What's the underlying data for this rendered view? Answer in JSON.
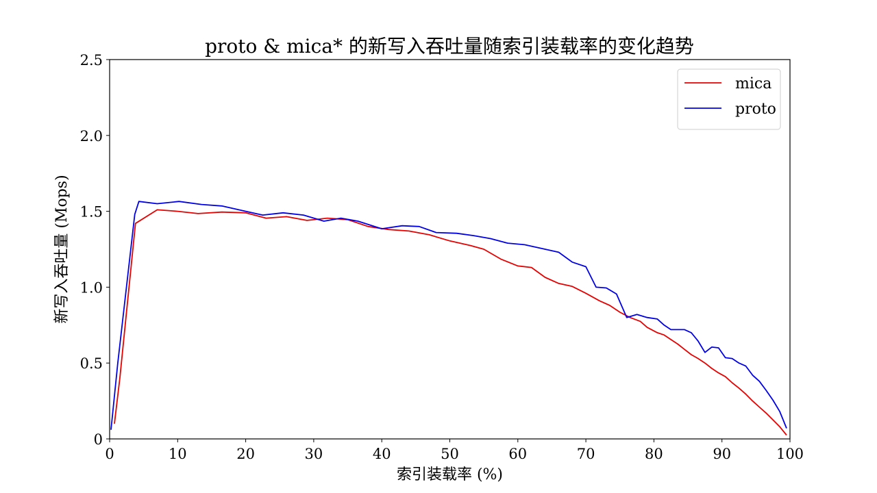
{
  "chart_data": {
    "type": "line",
    "title": "proto & mica* 的新写入吞吐量随索引装载率的变化趋势",
    "xlabel": "索引装载率 (%)",
    "ylabel": "新写入吞吐量 (Mops)",
    "xlim": [
      0,
      100
    ],
    "ylim": [
      0,
      2.5
    ],
    "xticks": [
      0,
      10,
      20,
      30,
      40,
      50,
      60,
      70,
      80,
      90,
      100
    ],
    "xtick_labels": [
      "0",
      "10",
      "20",
      "30",
      "40",
      "50",
      "60",
      "70",
      "80",
      "90",
      "100"
    ],
    "yticks": [
      0,
      0.5,
      1.0,
      1.5,
      2.0,
      2.5
    ],
    "ytick_labels": [
      "0",
      "0.5",
      "1.0",
      "1.5",
      "2.0",
      "2.5"
    ],
    "grid": false,
    "legend_position": "top-right",
    "series": [
      {
        "name": "mica",
        "color": "#e60000",
        "points": [
          [
            0.7,
            0.1
          ],
          [
            1.5,
            0.4
          ],
          [
            3.8,
            1.42
          ],
          [
            7,
            1.51
          ],
          [
            10,
            1.5
          ],
          [
            13,
            1.485
          ],
          [
            16.5,
            1.495
          ],
          [
            20,
            1.49
          ],
          [
            23,
            1.455
          ],
          [
            26,
            1.465
          ],
          [
            29,
            1.44
          ],
          [
            32,
            1.455
          ],
          [
            35,
            1.445
          ],
          [
            38,
            1.4
          ],
          [
            41,
            1.38
          ],
          [
            44,
            1.37
          ],
          [
            47,
            1.345
          ],
          [
            50,
            1.305
          ],
          [
            53,
            1.275
          ],
          [
            55,
            1.25
          ],
          [
            57.5,
            1.185
          ],
          [
            60,
            1.14
          ],
          [
            62,
            1.13
          ],
          [
            64,
            1.065
          ],
          [
            66,
            1.025
          ],
          [
            68,
            1.005
          ],
          [
            70,
            0.96
          ],
          [
            72,
            0.91
          ],
          [
            73.5,
            0.88
          ],
          [
            75,
            0.835
          ],
          [
            76.5,
            0.8
          ],
          [
            78,
            0.775
          ],
          [
            79,
            0.735
          ],
          [
            80.5,
            0.7
          ],
          [
            81.5,
            0.685
          ],
          [
            82.5,
            0.655
          ],
          [
            83.5,
            0.625
          ],
          [
            84.5,
            0.59
          ],
          [
            85.5,
            0.555
          ],
          [
            86.5,
            0.53
          ],
          [
            87.5,
            0.5
          ],
          [
            88.5,
            0.465
          ],
          [
            89.5,
            0.435
          ],
          [
            90.5,
            0.41
          ],
          [
            91.5,
            0.37
          ],
          [
            92.5,
            0.335
          ],
          [
            93.5,
            0.295
          ],
          [
            94.5,
            0.25
          ],
          [
            95.5,
            0.21
          ],
          [
            96.5,
            0.17
          ],
          [
            97.5,
            0.125
          ],
          [
            98.5,
            0.08
          ],
          [
            99.5,
            0.025
          ]
        ]
      },
      {
        "name": "proto",
        "color": "#0000e6",
        "points": [
          [
            0.2,
            0.06
          ],
          [
            1.2,
            0.5
          ],
          [
            3.7,
            1.48
          ],
          [
            4.3,
            1.565
          ],
          [
            7,
            1.55
          ],
          [
            10.2,
            1.565
          ],
          [
            13.5,
            1.545
          ],
          [
            16.5,
            1.535
          ],
          [
            19.5,
            1.505
          ],
          [
            22.5,
            1.475
          ],
          [
            25.5,
            1.49
          ],
          [
            28.5,
            1.475
          ],
          [
            31.5,
            1.435
          ],
          [
            34,
            1.455
          ],
          [
            36.5,
            1.435
          ],
          [
            40,
            1.385
          ],
          [
            43,
            1.405
          ],
          [
            45.5,
            1.4
          ],
          [
            48,
            1.36
          ],
          [
            51,
            1.355
          ],
          [
            53.5,
            1.34
          ],
          [
            56,
            1.32
          ],
          [
            58.5,
            1.29
          ],
          [
            61,
            1.28
          ],
          [
            63.5,
            1.255
          ],
          [
            66,
            1.23
          ],
          [
            68,
            1.165
          ],
          [
            70,
            1.135
          ],
          [
            71.5,
            1.0
          ],
          [
            73,
            0.995
          ],
          [
            74.5,
            0.955
          ],
          [
            76,
            0.8
          ],
          [
            77.5,
            0.82
          ],
          [
            79,
            0.8
          ],
          [
            80.5,
            0.79
          ],
          [
            81.5,
            0.75
          ],
          [
            82.5,
            0.72
          ],
          [
            84.5,
            0.72
          ],
          [
            85.5,
            0.7
          ],
          [
            86.5,
            0.645
          ],
          [
            87.5,
            0.57
          ],
          [
            88.5,
            0.605
          ],
          [
            89.5,
            0.6
          ],
          [
            90.5,
            0.535
          ],
          [
            91.5,
            0.53
          ],
          [
            92.5,
            0.5
          ],
          [
            93.5,
            0.48
          ],
          [
            94.5,
            0.42
          ],
          [
            95.5,
            0.38
          ],
          [
            96.5,
            0.32
          ],
          [
            97.5,
            0.255
          ],
          [
            98.5,
            0.18
          ],
          [
            99.5,
            0.07
          ]
        ]
      }
    ]
  }
}
